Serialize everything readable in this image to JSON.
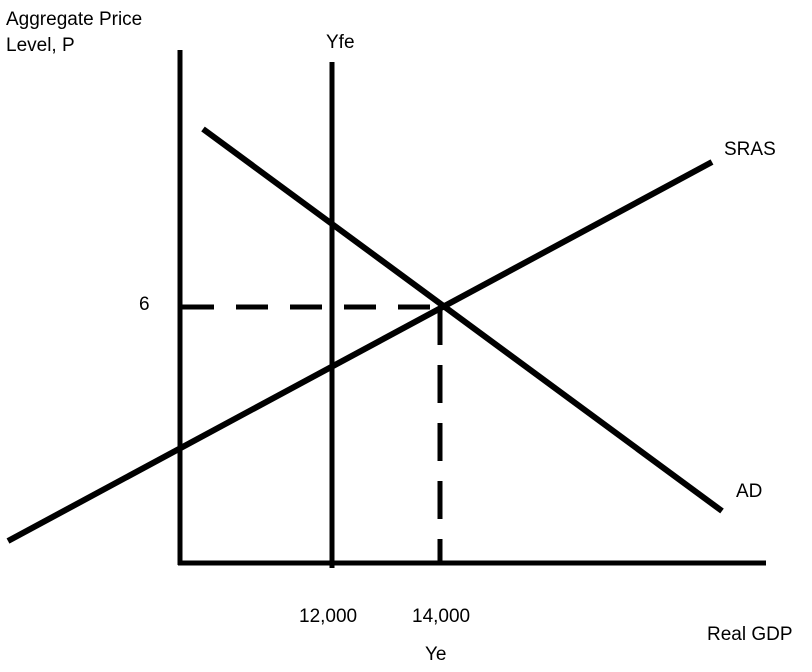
{
  "y_axis_label_line1": "Aggregate Price",
  "y_axis_label_line2": "Level, P",
  "x_axis_label": "Real GDP",
  "price_level_tick": "6",
  "gdp_tick_full_employment": "12,000",
  "gdp_tick_equilibrium": "14,000",
  "ye_label": "Ye",
  "yfe_label": "Yfe",
  "sras_label": "SRAS",
  "ad_label": "AD",
  "colors": {
    "line": "#000000",
    "background": "#ffffff"
  }
}
